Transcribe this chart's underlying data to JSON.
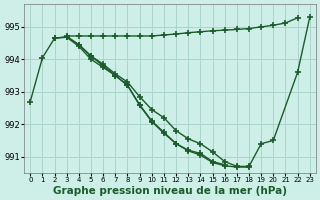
{
  "bg_color": "#ceeee8",
  "grid_color": "#aad4cc",
  "line_color": "#1a5c2a",
  "line_width": 1.0,
  "marker": "+",
  "marker_size": 4,
  "marker_ew": 1.2,
  "title": "Graphe pression niveau de la mer (hPa)",
  "title_fontsize": 7.5,
  "xlim": [
    -0.5,
    23.5
  ],
  "ylim": [
    990.5,
    995.7
  ],
  "yticks": [
    991,
    992,
    993,
    994,
    995
  ],
  "xticks": [
    0,
    1,
    2,
    3,
    4,
    5,
    6,
    7,
    8,
    9,
    10,
    11,
    12,
    13,
    14,
    15,
    16,
    17,
    18,
    19,
    20,
    21,
    22,
    23
  ],
  "lines": [
    {
      "x": [
        0,
        1,
        2,
        3,
        4,
        5,
        6,
        7,
        8,
        9,
        10,
        11,
        12,
        13,
        14,
        15,
        16,
        17,
        18,
        19,
        20,
        22,
        23
      ],
      "y": [
        992.7,
        994.05,
        994.65,
        994.7,
        994.45,
        994.1,
        993.85,
        993.55,
        993.3,
        992.85,
        992.45,
        992.2,
        991.8,
        991.55,
        991.4,
        991.15,
        990.85,
        990.7,
        990.7,
        991.4,
        991.5,
        993.6,
        995.3
      ]
    },
    {
      "x": [
        3,
        4,
        5,
        6,
        7,
        8,
        9,
        10,
        11,
        12,
        13,
        14,
        15,
        16
      ],
      "y": [
        994.7,
        994.45,
        994.1,
        993.8,
        993.5,
        993.2,
        992.6,
        992.1,
        991.75,
        991.4,
        991.2,
        991.1,
        990.85,
        990.75
      ]
    },
    {
      "x": [
        2,
        3,
        4,
        5,
        6,
        7,
        8,
        9,
        10,
        11,
        12,
        13,
        14,
        15,
        16,
        17,
        18
      ],
      "y": [
        994.65,
        994.68,
        994.4,
        994.0,
        993.75,
        993.5,
        993.2,
        992.58,
        992.08,
        991.72,
        991.4,
        991.18,
        991.05,
        990.82,
        990.72,
        990.68,
        990.68
      ]
    },
    {
      "x": [
        3,
        4,
        5,
        6,
        7,
        8,
        9,
        10,
        11,
        12,
        13,
        14,
        15,
        16,
        17,
        18,
        19,
        20,
        21,
        22
      ],
      "y": [
        994.72,
        994.72,
        994.72,
        994.72,
        994.72,
        994.72,
        994.72,
        994.72,
        994.75,
        994.78,
        994.82,
        994.85,
        994.88,
        994.9,
        994.92,
        994.95,
        995.0,
        995.05,
        995.12,
        995.28
      ]
    }
  ]
}
